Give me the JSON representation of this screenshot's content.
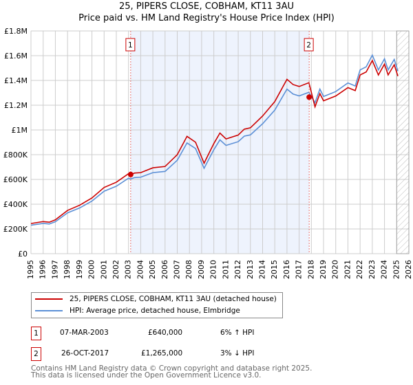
{
  "chart_data": {
    "type": "line",
    "title": "25, PIPERS CLOSE, COBHAM, KT11 3AU",
    "subtitle": "Price paid vs. HM Land Registry's House Price Index (HPI)",
    "xlim": [
      1995,
      2026
    ],
    "ylim": [
      0,
      1800000
    ],
    "y_ticks": [
      {
        "v": 0,
        "label": "£0"
      },
      {
        "v": 200000,
        "label": "£200K"
      },
      {
        "v": 400000,
        "label": "£400K"
      },
      {
        "v": 600000,
        "label": "£600K"
      },
      {
        "v": 800000,
        "label": "£800K"
      },
      {
        "v": 1000000,
        "label": "£1M"
      },
      {
        "v": 1200000,
        "label": "£1.2M"
      },
      {
        "v": 1400000,
        "label": "£1.4M"
      },
      {
        "v": 1600000,
        "label": "£1.6M"
      },
      {
        "v": 1800000,
        "label": "£1.8M"
      }
    ],
    "x_ticks": [
      "1995",
      "1996",
      "1997",
      "1998",
      "1999",
      "2000",
      "2001",
      "2002",
      "2003",
      "2004",
      "2005",
      "2006",
      "2007",
      "2008",
      "2009",
      "2010",
      "2011",
      "2012",
      "2013",
      "2014",
      "2015",
      "2016",
      "2017",
      "2018",
      "2019",
      "2020",
      "2021",
      "2022",
      "2023",
      "2024",
      "2025",
      "2026"
    ],
    "hpi_series": {
      "name": "HPI: Average price, detached house, Elmbridge",
      "color": "#5b8fd6",
      "x": [
        1995,
        1996,
        1996.5,
        1997,
        1998,
        1999,
        2000,
        2001,
        2002,
        2003,
        2003.18,
        2003.5,
        2004,
        2005,
        2006,
        2007,
        2007.8,
        2008.5,
        2009.2,
        2010,
        2010.5,
        2011,
        2012,
        2012.5,
        2013,
        2014,
        2015,
        2016,
        2016.5,
        2017,
        2017.8,
        2018.3,
        2018.7,
        2019,
        2020,
        2021,
        2021.6,
        2022,
        2022.5,
        2023,
        2023.5,
        2024,
        2024.3,
        2024.8,
        2025.1
      ],
      "y": [
        230000,
        245000,
        240000,
        258000,
        330000,
        370000,
        425000,
        505000,
        545000,
        610000,
        604000,
        615000,
        618000,
        655000,
        665000,
        755000,
        895000,
        850000,
        690000,
        840000,
        920000,
        875000,
        905000,
        950000,
        960000,
        1050000,
        1160000,
        1330000,
        1290000,
        1275000,
        1304000,
        1220000,
        1330000,
        1270000,
        1310000,
        1380000,
        1355000,
        1485000,
        1510000,
        1605000,
        1485000,
        1575000,
        1485000,
        1570000,
        1475000
      ]
    },
    "property_series": {
      "name": "25, PIPERS CLOSE, COBHAM, KT11 3AU (detached house)",
      "color": "#cc0000"
    },
    "sales": [
      {
        "id": "1",
        "x": 2003.18,
        "date": "07-MAR-2003",
        "price_label": "£640,000",
        "price": 640000,
        "hpi_change": "6% ↑ HPI"
      },
      {
        "id": "2",
        "x": 2017.82,
        "date": "26-OCT-2017",
        "price_label": "£1,265,000",
        "price": 1265000,
        "hpi_change": "3% ↓ HPI"
      }
    ],
    "forecast_hatch_from": 2025.0,
    "grid": true
  },
  "footer": {
    "line1": "Contains HM Land Registry data © Crown copyright and database right 2025.",
    "line2": "This data is licensed under the Open Government Licence v3.0."
  }
}
